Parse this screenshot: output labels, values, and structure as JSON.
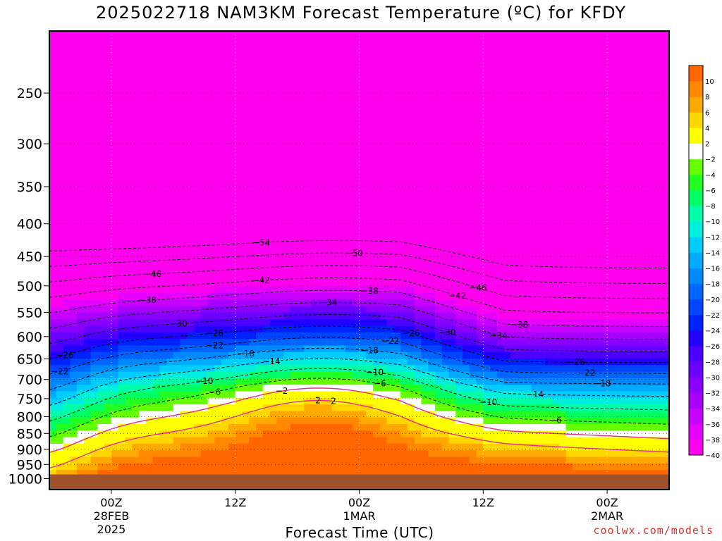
{
  "header": {
    "title": "2025022718 NAM3KM Forecast Temperature (ºC) for KFDY"
  },
  "footer": {
    "credit": "coolwx.com/models",
    "xlabel": "Forecast Time (UTC)"
  },
  "chart_data": {
    "type": "heatmap",
    "title": "2025022718 NAM3KM Forecast Temperature (ºC) for KFDY",
    "xlabel": "Forecast Time (UTC)",
    "ylabel": "",
    "x_range_hours": [
      0,
      60
    ],
    "x_ticks": [
      {
        "hour": 6,
        "lines": [
          "00Z",
          "28FEB",
          "2025"
        ]
      },
      {
        "hour": 18,
        "lines": [
          "12Z"
        ]
      },
      {
        "hour": 30,
        "lines": [
          "00Z",
          "1MAR"
        ]
      },
      {
        "hour": 42,
        "lines": [
          "12Z"
        ]
      },
      {
        "hour": 54,
        "lines": [
          "00Z",
          "2MAR"
        ]
      }
    ],
    "y_ticks_hpa": [
      250,
      300,
      350,
      400,
      450,
      500,
      550,
      600,
      650,
      700,
      750,
      800,
      850,
      900,
      950,
      1000
    ],
    "y_range_hpa": [
      200,
      1040
    ],
    "y_scale": "log",
    "grid": true,
    "levels": [
      -40,
      -38,
      -36,
      -34,
      -32,
      -30,
      -28,
      -26,
      -24,
      -22,
      -20,
      -18,
      -16,
      -14,
      -12,
      -10,
      -8,
      -6,
      -4,
      -2,
      2,
      4,
      6,
      8,
      10
    ],
    "colorbar_labels": [
      "10",
      "8",
      "6",
      "4",
      "2",
      "-2",
      "-4",
      "-6",
      "-8",
      "-10",
      "-12",
      "-14",
      "-16",
      "-18",
      "-20",
      "-22",
      "-24",
      "-26",
      "-28",
      "-30",
      "-32",
      "-34",
      "-36",
      "-38",
      "-40"
    ],
    "colors": [
      "#ff00ee",
      "#e600ff",
      "#c800ff",
      "#a800ff",
      "#8a00ff",
      "#6a00ff",
      "#4c00ff",
      "#2200ff",
      "#0022ff",
      "#0044ff",
      "#0066ff",
      "#0088ff",
      "#00aaff",
      "#00ccff",
      "#00eedd",
      "#00ffaa",
      "#00ff66",
      "#22ff22",
      "#66ff00",
      "#ffffff",
      "#ffff00",
      "#ffd700",
      "#ffaa00",
      "#ff8800",
      "#ff6600"
    ],
    "ground_color": "#a0522d",
    "surface_hpa": 985,
    "contours": [
      {
        "value": -54,
        "hour": 20.5
      },
      {
        "value": -50,
        "hour": 29.5
      },
      {
        "value": -46,
        "hour": 10.0
      },
      {
        "value": -46,
        "hour": 41.5
      },
      {
        "value": -42,
        "hour": 20.5
      },
      {
        "value": -42,
        "hour": 39.5
      },
      {
        "value": -38,
        "hour": 9.5
      },
      {
        "value": -38,
        "hour": 31.0
      },
      {
        "value": -38,
        "hour": 45.5
      },
      {
        "value": -34,
        "hour": 27.0
      },
      {
        "value": -34,
        "hour": 43.5
      },
      {
        "value": -30,
        "hour": 12.5
      },
      {
        "value": -30,
        "hour": 38.5
      },
      {
        "value": -26,
        "hour": 1.5
      },
      {
        "value": -26,
        "hour": 16.0
      },
      {
        "value": -26,
        "hour": 35.0
      },
      {
        "value": -26,
        "hour": 51.0
      },
      {
        "value": -22,
        "hour": 1.0
      },
      {
        "value": -22,
        "hour": 16.0
      },
      {
        "value": -22,
        "hour": 33.0
      },
      {
        "value": -22,
        "hour": 52.0
      },
      {
        "value": -18,
        "hour": 19.0
      },
      {
        "value": -18,
        "hour": 31.0
      },
      {
        "value": -18,
        "hour": 53.5
      },
      {
        "value": -14,
        "hour": 21.5
      },
      {
        "value": -14,
        "hour": 47.0
      },
      {
        "value": -10,
        "hour": 15.0
      },
      {
        "value": -10,
        "hour": 31.5
      },
      {
        "value": -10,
        "hour": 42.5
      },
      {
        "value": -6,
        "hour": 16.0
      },
      {
        "value": -6,
        "hour": 32.0
      },
      {
        "value": -6,
        "hour": 49.0
      },
      {
        "value": -2,
        "hour": 22.5
      },
      {
        "value": 2,
        "hour": 26.0
      },
      {
        "value": 2,
        "hour": 27.5
      }
    ]
  }
}
